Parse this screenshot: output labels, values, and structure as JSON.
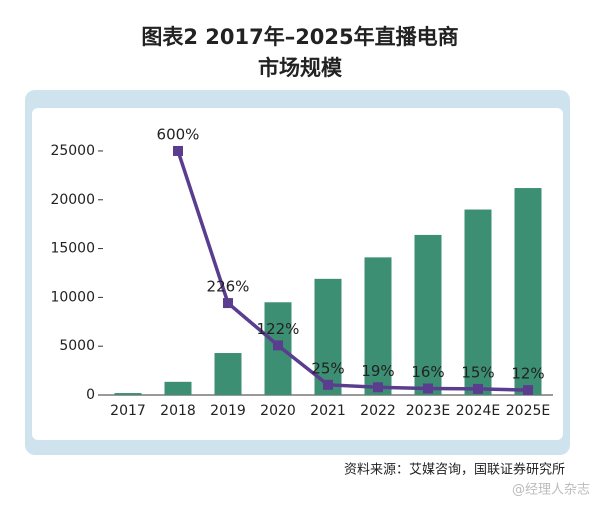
{
  "chart_data": {
    "type": "bar_line",
    "title": [
      "图表2  2017年–2025年直播电商",
      "市场规模"
    ],
    "categories": [
      "2017",
      "2018",
      "2019",
      "2020",
      "2021",
      "2022",
      "2023E",
      "2024E",
      "2025E"
    ],
    "series": [
      {
        "type": "bar",
        "color": "#3d8f74",
        "values": [
          200,
          1350,
          4300,
          9500,
          11900,
          14100,
          16400,
          19000,
          21200
        ]
      },
      {
        "type": "line",
        "axis": "y2",
        "color": "#5a3d8e",
        "values": [
          null,
          600,
          226,
          122,
          25,
          19,
          16,
          15,
          12
        ],
        "value_labels": [
          null,
          "600%",
          "226%",
          "122%",
          "25%",
          "19%",
          "16%",
          "15%",
          "12%"
        ]
      }
    ],
    "ylim": [
      0,
      26000
    ],
    "yticks": [
      0,
      5000,
      10000,
      15000,
      20000,
      25000
    ],
    "y2lim": [
      0,
      624
    ],
    "source": "资料来源：艾媒咨询，国联证券研究所",
    "watermark": "@经理人杂志"
  }
}
